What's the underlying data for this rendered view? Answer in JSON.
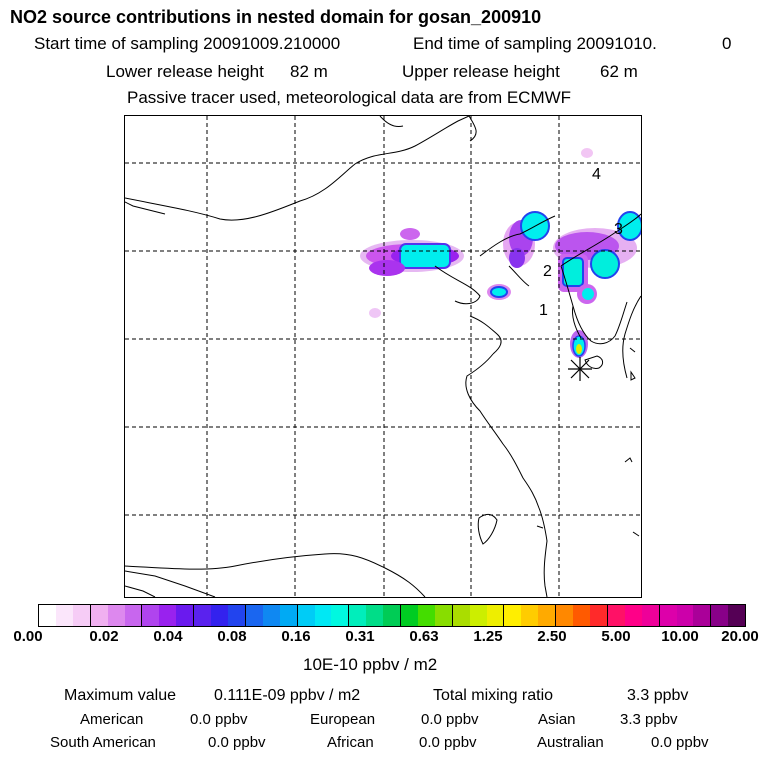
{
  "title": "NO2 source contributions in nested domain for gosan_200910",
  "header": {
    "start_label": "Start time of sampling 20091009.210000",
    "end_label": "End time of sampling 20091010.",
    "end_value": "0",
    "lower_label": "Lower release height",
    "lower_value": "82 m",
    "upper_label": "Upper release height",
    "upper_value": "62 m",
    "tracer_note": "Passive tracer used, meteorological data are from ECMWF"
  },
  "map": {
    "labels": [
      "1",
      "2",
      "3",
      "4"
    ],
    "site_marker": "asterisk-icon"
  },
  "colorbar": {
    "ticks": [
      "0.00",
      "0.02",
      "0.04",
      "0.08",
      "0.16",
      "0.31",
      "0.63",
      "1.25",
      "2.50",
      "5.00",
      "10.00",
      "20.00"
    ],
    "units": "10E-10 ppbv / m2",
    "colors": [
      "#ffffff",
      "#fbe6fb",
      "#f6ccf6",
      "#f0b0f0",
      "#dd88ee",
      "#c866ee",
      "#b044ee",
      "#9922ee",
      "#6a1aee",
      "#5a22ee",
      "#3322ee",
      "#2244ee",
      "#1a66f0",
      "#0f88f2",
      "#00aaf4",
      "#00ccf6",
      "#00e8f4",
      "#00f8e0",
      "#00eebb",
      "#00dd88",
      "#00cc55",
      "#00cc22",
      "#44dd00",
      "#88dd00",
      "#aadd00",
      "#ccee00",
      "#eeee00",
      "#ffee00",
      "#ffcc00",
      "#ffaa00",
      "#ff8800",
      "#ff5a00",
      "#ff2a2a",
      "#ff1166",
      "#ff0088",
      "#ee0099",
      "#dd00aa",
      "#cc00aa",
      "#aa0099",
      "#880088",
      "#550055"
    ]
  },
  "footer": {
    "max_label": "Maximum value",
    "max_value": "0.111E-09 ppbv / m2",
    "total_label": "Total mixing ratio",
    "total_value": "3.3 ppbv",
    "american_label": "American",
    "american_value": "0.0 ppbv",
    "european_label": "European",
    "european_value": "0.0 ppbv",
    "asian_label": "Asian",
    "asian_value": "3.3 ppbv",
    "south_american_label": "South American",
    "south_american_value": "0.0 ppbv",
    "african_label": "African",
    "african_value": "0.0 ppbv",
    "australian_label": "Australian",
    "australian_value": "0.0 ppbv"
  }
}
